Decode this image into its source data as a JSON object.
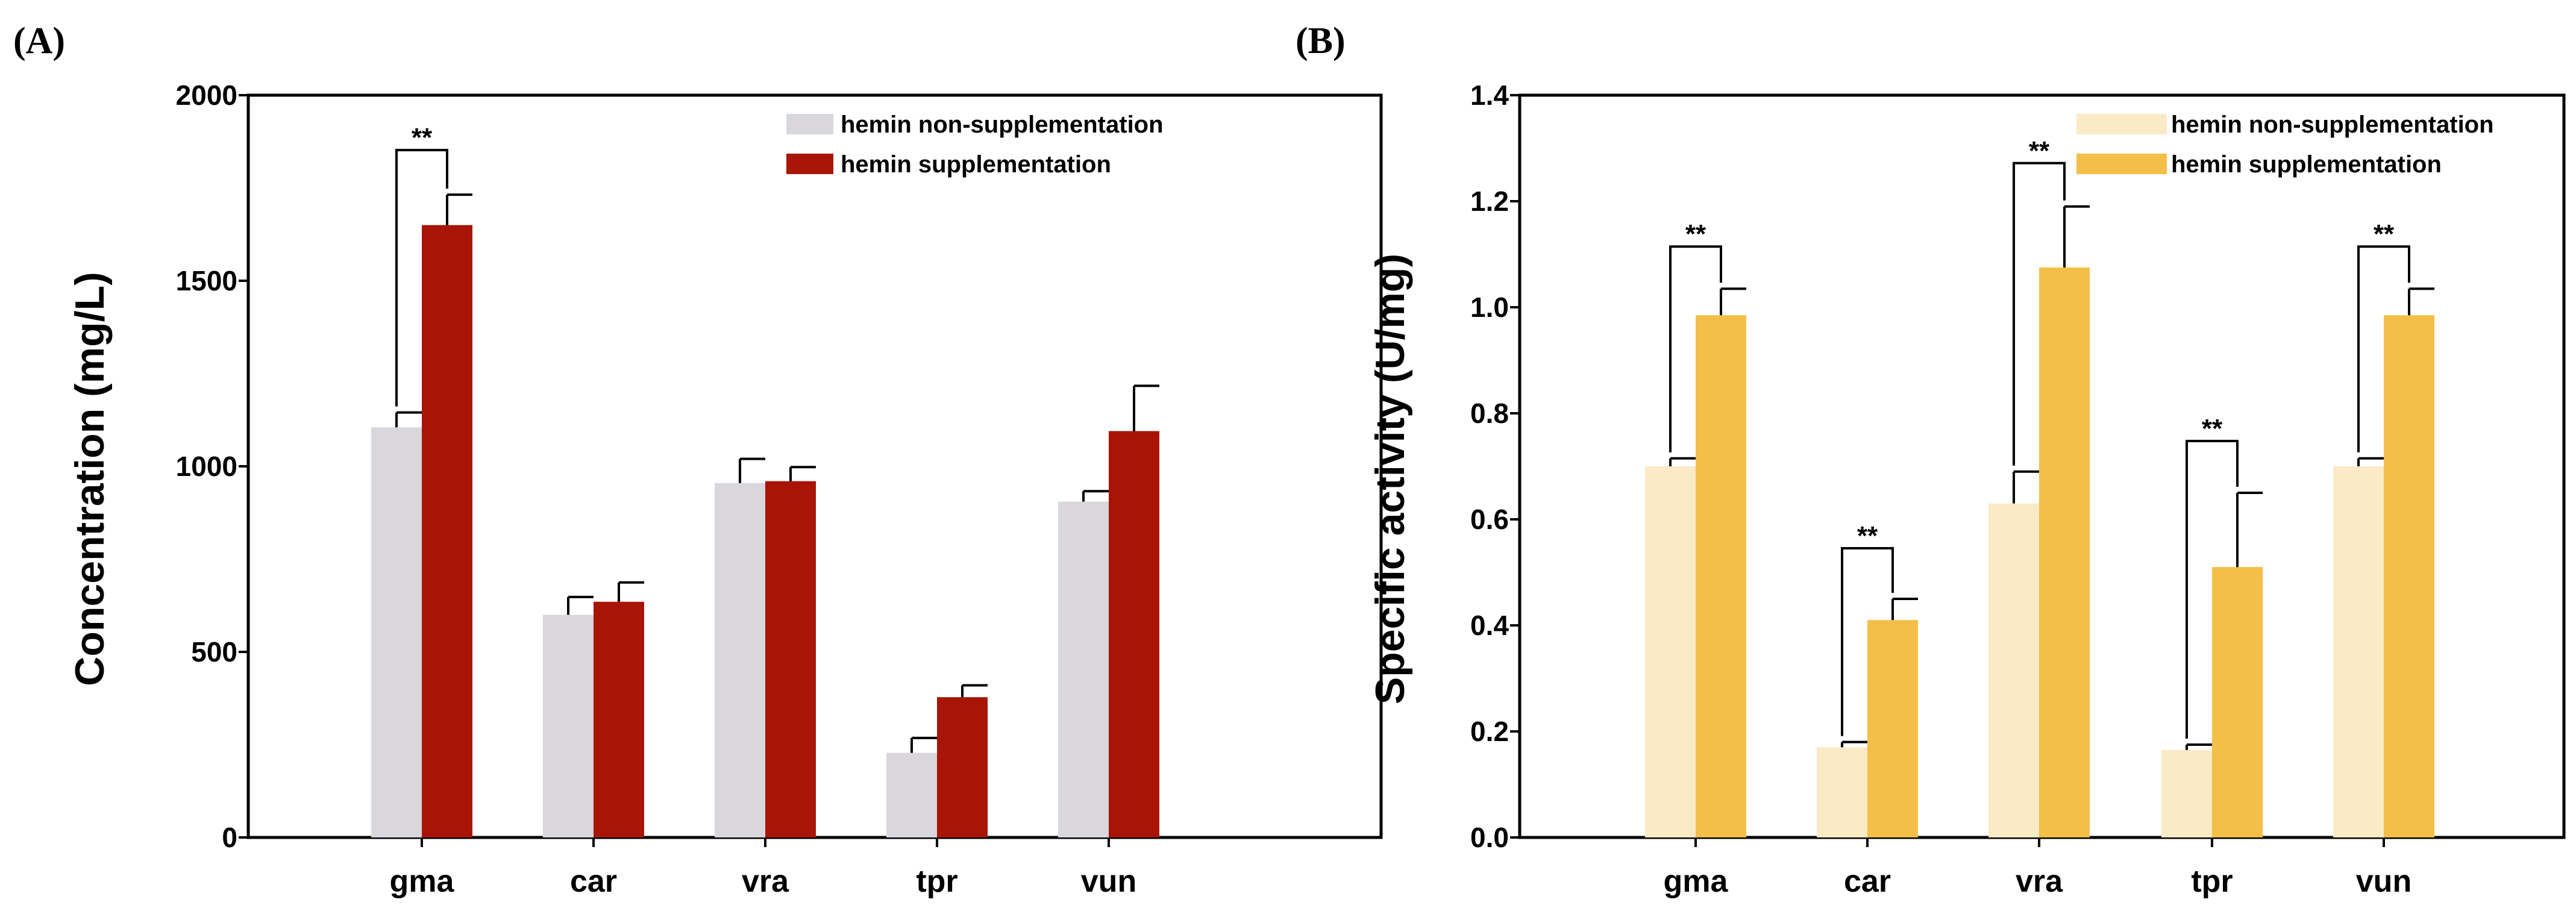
{
  "chart_data": [
    {
      "panel": "(A)",
      "type": "bar",
      "ylabel": "Concentration (mg/L)",
      "xlabel": "",
      "ylim": [
        0,
        2000
      ],
      "yticks": [
        "0",
        "500",
        "1000",
        "1500",
        "2000"
      ],
      "ytick_values": [
        0,
        500,
        1000,
        1500,
        2000
      ],
      "categories": [
        "gma",
        "car",
        "vra",
        "tpr",
        "vun"
      ],
      "series": [
        {
          "name": "hemin non-supplementation",
          "color": "#d9d7dc",
          "values": [
            1105,
            600,
            955,
            228,
            905
          ],
          "errors": [
            40,
            48,
            65,
            40,
            28
          ]
        },
        {
          "name": "hemin supplementation",
          "color": "#a81506",
          "values": [
            1650,
            635,
            960,
            378,
            1095
          ],
          "errors": [
            82,
            52,
            38,
            32,
            122
          ]
        }
      ],
      "significance": [
        {
          "category": "gma",
          "label": "**"
        }
      ],
      "legend": "top-right"
    },
    {
      "panel": "(B)",
      "type": "bar",
      "ylabel": "Specific activity (U/mg)",
      "xlabel": "",
      "ylim": [
        0,
        1.4
      ],
      "yticks": [
        "0.0",
        "0.2",
        "0.4",
        "0.6",
        "0.8",
        "1.0",
        "1.2",
        "1.4"
      ],
      "ytick_values": [
        0,
        0.2,
        0.4,
        0.6,
        0.8,
        1.0,
        1.2,
        1.4
      ],
      "categories": [
        "gma",
        "car",
        "vra",
        "tpr",
        "vun"
      ],
      "series": [
        {
          "name": "hemin non-supplementation",
          "color": "#faeac6",
          "values": [
            0.7,
            0.17,
            0.63,
            0.165,
            0.7
          ],
          "errors": [
            0.015,
            0.01,
            0.06,
            0.01,
            0.015
          ]
        },
        {
          "name": "hemin supplementation",
          "color": "#f3bf48",
          "values": [
            0.985,
            0.41,
            1.075,
            0.51,
            0.985
          ],
          "errors": [
            0.05,
            0.04,
            0.115,
            0.14,
            0.05
          ]
        }
      ],
      "significance": [
        {
          "category": "gma",
          "label": "**"
        },
        {
          "category": "car",
          "label": "**"
        },
        {
          "category": "vra",
          "label": "**"
        },
        {
          "category": "tpr",
          "label": "**"
        },
        {
          "category": "vun",
          "label": "**"
        }
      ],
      "legend": "top-right"
    }
  ]
}
